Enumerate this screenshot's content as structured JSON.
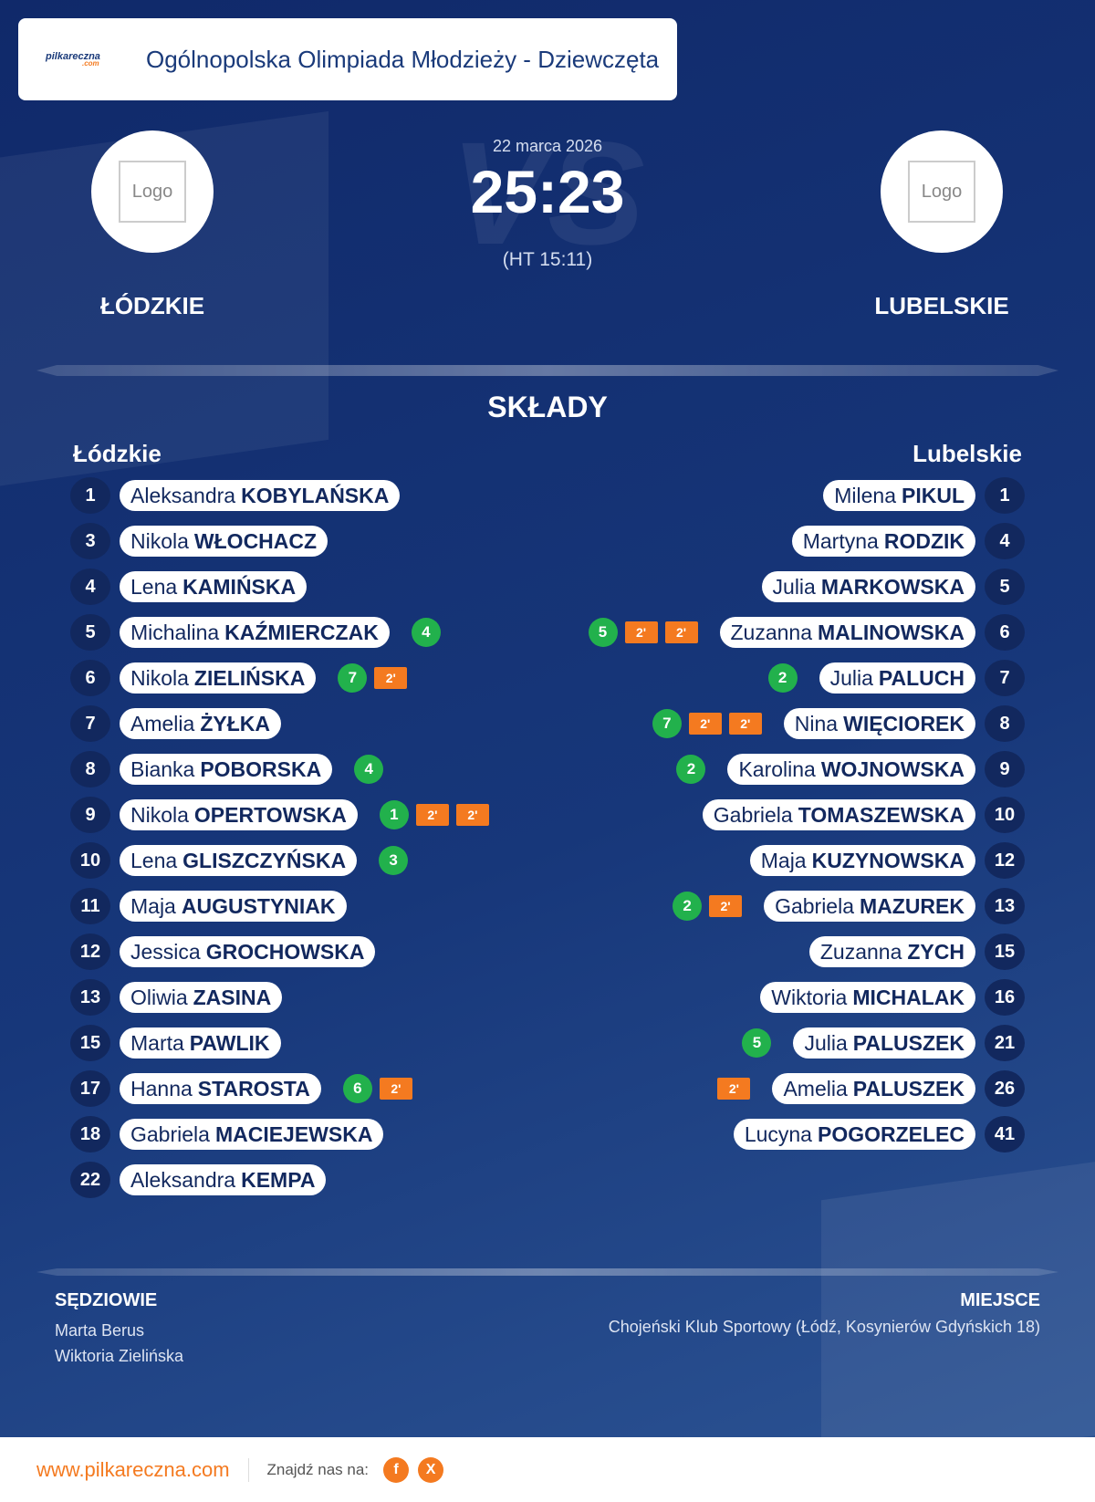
{
  "header": {
    "logo_text": "pilkareczna",
    "logo_suffix": ".com",
    "title": "Ogólnopolska Olimpiada Młodzieży - Dziewczęta"
  },
  "match": {
    "date": "22 marca 2026",
    "score": "25:23",
    "halftime": "(HT 15:11)",
    "watermark": "VS",
    "logo_placeholder": "Logo",
    "home": "ŁÓDZKIE",
    "away": "LUBELSKIE"
  },
  "section_title": "SKŁADY",
  "teams": {
    "home": {
      "name": "Łódzkie",
      "players": [
        {
          "number": 1,
          "first": "Aleksandra",
          "last": "KOBYLAŃSKA"
        },
        {
          "number": 3,
          "first": "Nikola",
          "last": "WŁOCHACZ"
        },
        {
          "number": 4,
          "first": "Lena",
          "last": "KAMIŃSKA"
        },
        {
          "number": 5,
          "first": "Michalina",
          "last": "KAŹMIERCZAK",
          "goals": 4
        },
        {
          "number": 6,
          "first": "Nikola",
          "last": "ZIELIŃSKA",
          "goals": 7,
          "penalties": [
            "2'"
          ]
        },
        {
          "number": 7,
          "first": "Amelia",
          "last": "ŻYŁKA"
        },
        {
          "number": 8,
          "first": "Bianka",
          "last": "POBORSKA",
          "goals": 4
        },
        {
          "number": 9,
          "first": "Nikola",
          "last": "OPERTOWSKA",
          "goals": 1,
          "penalties": [
            "2'",
            "2'"
          ]
        },
        {
          "number": 10,
          "first": "Lena",
          "last": "GLISZCZYŃSKA",
          "goals": 3
        },
        {
          "number": 11,
          "first": "Maja",
          "last": "AUGUSTYNIAK"
        },
        {
          "number": 12,
          "first": "Jessica",
          "last": "GROCHOWSKA"
        },
        {
          "number": 13,
          "first": "Oliwia",
          "last": "ZASINA"
        },
        {
          "number": 15,
          "first": "Marta",
          "last": "PAWLIK"
        },
        {
          "number": 17,
          "first": "Hanna",
          "last": "STAROSTA",
          "goals": 6,
          "penalties": [
            "2'"
          ]
        },
        {
          "number": 18,
          "first": "Gabriela",
          "last": "MACIEJEWSKA"
        },
        {
          "number": 22,
          "first": "Aleksandra",
          "last": "KEMPA"
        }
      ]
    },
    "away": {
      "name": "Lubelskie",
      "players": [
        {
          "number": 1,
          "first": "Milena",
          "last": "PIKUL"
        },
        {
          "number": 4,
          "first": "Martyna",
          "last": "RODZIK"
        },
        {
          "number": 5,
          "first": "Julia",
          "last": "MARKOWSKA"
        },
        {
          "number": 6,
          "first": "Zuzanna",
          "last": "MALINOWSKA",
          "goals": 5,
          "penalties": [
            "2'",
            "2'"
          ]
        },
        {
          "number": 7,
          "first": "Julia",
          "last": "PALUCH",
          "goals": 2
        },
        {
          "number": 8,
          "first": "Nina",
          "last": "WIĘCIOREK",
          "goals": 7,
          "penalties": [
            "2'",
            "2'"
          ]
        },
        {
          "number": 9,
          "first": "Karolina",
          "last": "WOJNOWSKA",
          "goals": 2
        },
        {
          "number": 10,
          "first": "Gabriela",
          "last": "TOMASZEWSKA"
        },
        {
          "number": 12,
          "first": "Maja",
          "last": "KUZYNOWSKA"
        },
        {
          "number": 13,
          "first": "Gabriela",
          "last": "MAZUREK",
          "goals": 2,
          "penalties": [
            "2'"
          ]
        },
        {
          "number": 15,
          "first": "Zuzanna",
          "last": "ZYCH"
        },
        {
          "number": 16,
          "first": "Wiktoria",
          "last": "MICHALAK"
        },
        {
          "number": 21,
          "first": "Julia",
          "last": "PALUSZEK",
          "goals": 5
        },
        {
          "number": 26,
          "first": "Amelia",
          "last": "PALUSZEK",
          "penalties": [
            "2'"
          ]
        },
        {
          "number": 41,
          "first": "Lucyna",
          "last": "POGORZELEC"
        }
      ]
    }
  },
  "officials": {
    "referees_label": "SĘDZIOWIE",
    "referees": [
      "Marta Berus",
      "Wiktoria Zielińska"
    ],
    "venue_label": "MIEJSCE",
    "venue": "Chojeński Klub Sportowy (Łódź, Kosynierów Gdyńskich 18)"
  },
  "footer": {
    "url": "www.pilkareczna.com",
    "follow": "Znajdź nas na:",
    "icons": [
      "f",
      "X"
    ]
  }
}
